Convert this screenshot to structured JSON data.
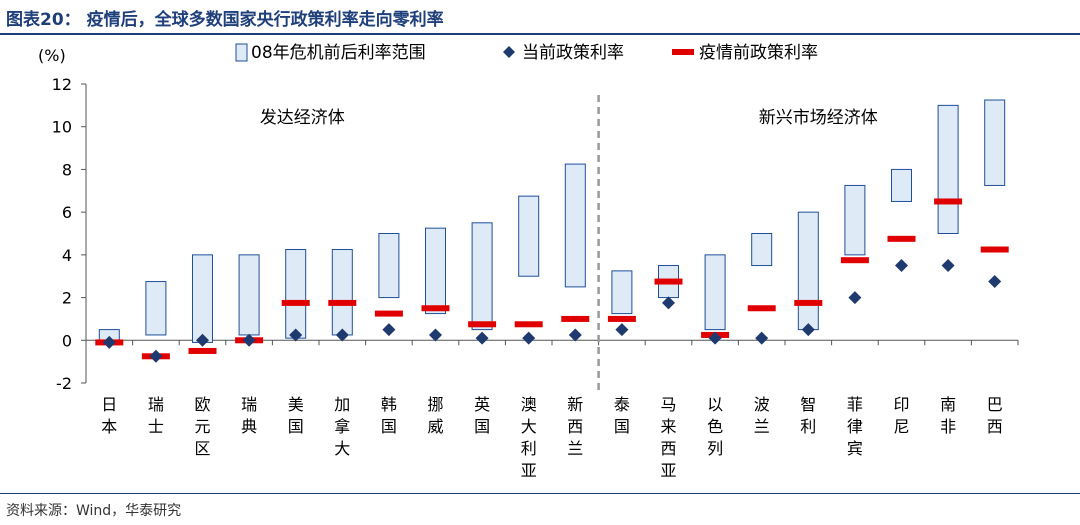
{
  "header": {
    "title": "图表20：  疫情后，全球多数国家央行政策利率走向零利率"
  },
  "footer": {
    "source": "资料来源：Wind，华泰研究"
  },
  "chart_data": {
    "type": "range-bar-with-markers",
    "ylabel": "(%)",
    "ylim": [
      -2,
      12
    ],
    "yticks": [
      -2,
      0,
      2,
      4,
      6,
      8,
      10,
      12
    ],
    "legend": {
      "placement": "top",
      "range": "08年危机前后利率范围",
      "current": "当前政策利率",
      "pre": "疫情前政策利率"
    },
    "groups": [
      {
        "label": "发达经济体",
        "start": 0,
        "end": 10
      },
      {
        "label": "新兴市场经济体",
        "start": 11,
        "end": 19
      }
    ],
    "colors": {
      "range_fill": "#deebf7",
      "range_stroke": "#1f4e9a",
      "current": "#1f3a6e",
      "pre": "#e00000",
      "divider": "#999999"
    },
    "categories": [
      "日本",
      "瑞士",
      "欧元区",
      "瑞典",
      "美国",
      "加拿大",
      "韩国",
      "挪威",
      "英国",
      "澳大利亚",
      "新西兰",
      "泰国",
      "马来西亚",
      "以色列",
      "波兰",
      "智利",
      "菲律宾",
      "印尼",
      "南非",
      "巴西"
    ],
    "range_low": [
      0.0,
      0.25,
      -0.1,
      0.25,
      0.1,
      0.25,
      2.0,
      1.25,
      0.5,
      3.0,
      2.5,
      1.25,
      2.0,
      0.5,
      3.5,
      0.5,
      4.0,
      6.5,
      5.0,
      7.25
    ],
    "range_high": [
      0.5,
      2.75,
      4.0,
      4.0,
      4.25,
      4.25,
      5.0,
      5.25,
      5.5,
      6.75,
      8.25,
      3.25,
      3.5,
      4.0,
      5.0,
      6.0,
      7.25,
      8.0,
      11.0,
      11.25
    ],
    "current": [
      -0.1,
      -0.75,
      0.0,
      0.0,
      0.25,
      0.25,
      0.5,
      0.25,
      0.1,
      0.1,
      0.25,
      0.5,
      1.75,
      0.1,
      0.1,
      0.5,
      2.0,
      3.5,
      3.5,
      2.75
    ],
    "pre_pandemic": [
      -0.1,
      -0.75,
      -0.5,
      0.0,
      1.75,
      1.75,
      1.25,
      1.5,
      0.75,
      0.75,
      1.0,
      1.0,
      2.75,
      0.25,
      1.5,
      1.75,
      3.75,
      4.75,
      6.5,
      4.25
    ]
  }
}
